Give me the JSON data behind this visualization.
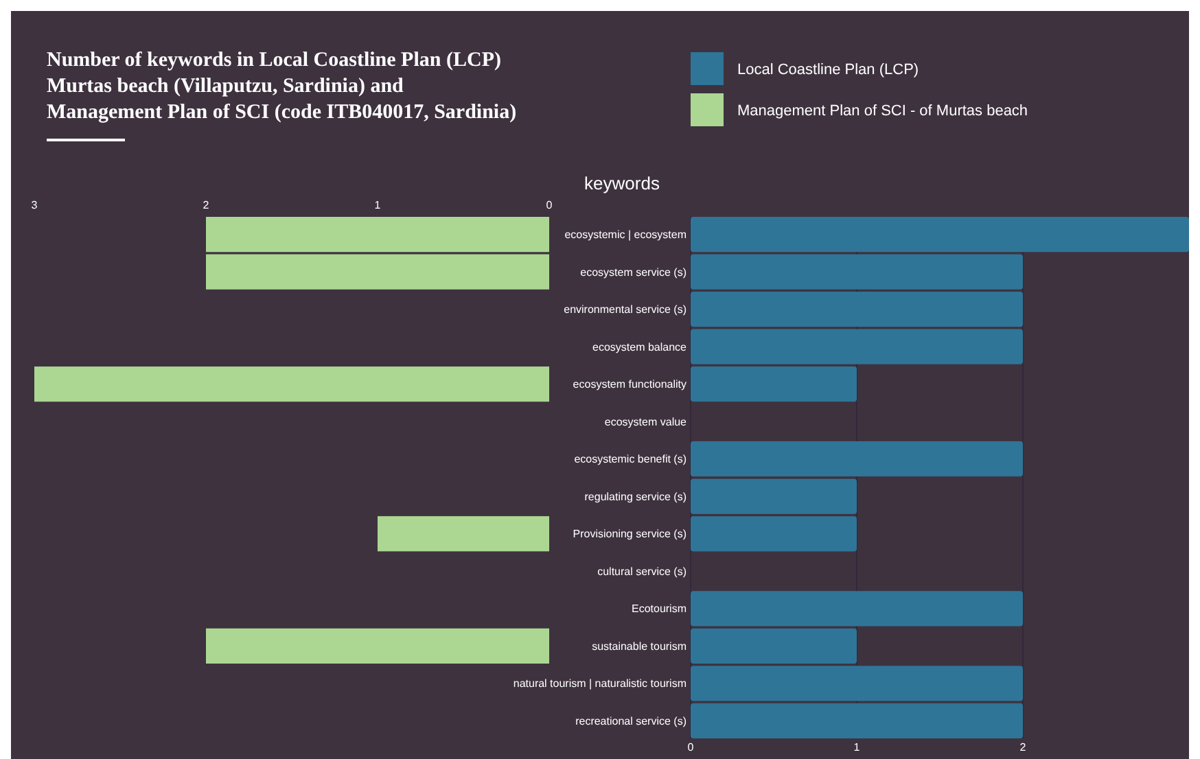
{
  "chart_data": [
    {
      "type": "bar",
      "orientation": "horizontal",
      "title": "Number of keywords in Local Coastline Plan (LCP)\nMurtas beach (Villaputzu, Sardinia) and\nManagement Plan of SCI (code ITB040017, Sardinia)",
      "xlabel": "keywords",
      "categories": [
        "ecosystemic | ecosystem",
        "ecosystem service (s)",
        "environmental service (s)",
        "ecosystem balance",
        "ecosystem functionality",
        "ecosystem value",
        "ecosystemic benefit (s)",
        "regulating service (s)",
        "Provisioning service (s)",
        "cultural service (s)",
        "Ecotourism",
        "sustainable tourism",
        "natural tourism | naturalistic tourism",
        "recreational service (s)"
      ],
      "series": [
        {
          "name": "Management Plan of SCI - of Murtas beach",
          "color": "#acd793",
          "values": [
            2,
            2,
            0,
            0,
            3,
            0,
            0,
            0,
            1,
            0,
            0,
            2,
            0,
            0
          ]
        }
      ],
      "xlim": [
        3,
        0
      ],
      "xticks": [
        3,
        2,
        1,
        0
      ],
      "legend": "top right"
    },
    {
      "type": "bar",
      "orientation": "horizontal",
      "categories": [
        null,
        null,
        null,
        null,
        null,
        null,
        null,
        null,
        null,
        null,
        null,
        null,
        null,
        null
      ],
      "series": [
        {
          "name": "Local Coastline Plan (LCP)",
          "color": "#2f7597",
          "values": [
            3,
            2,
            2,
            2,
            1,
            0,
            2,
            1,
            1,
            0,
            2,
            1,
            2,
            2
          ]
        }
      ],
      "xlim": [
        0,
        3
      ],
      "xticks": [
        0,
        1,
        2
      ],
      "grid": "x",
      "legend": "top left"
    }
  ]
}
